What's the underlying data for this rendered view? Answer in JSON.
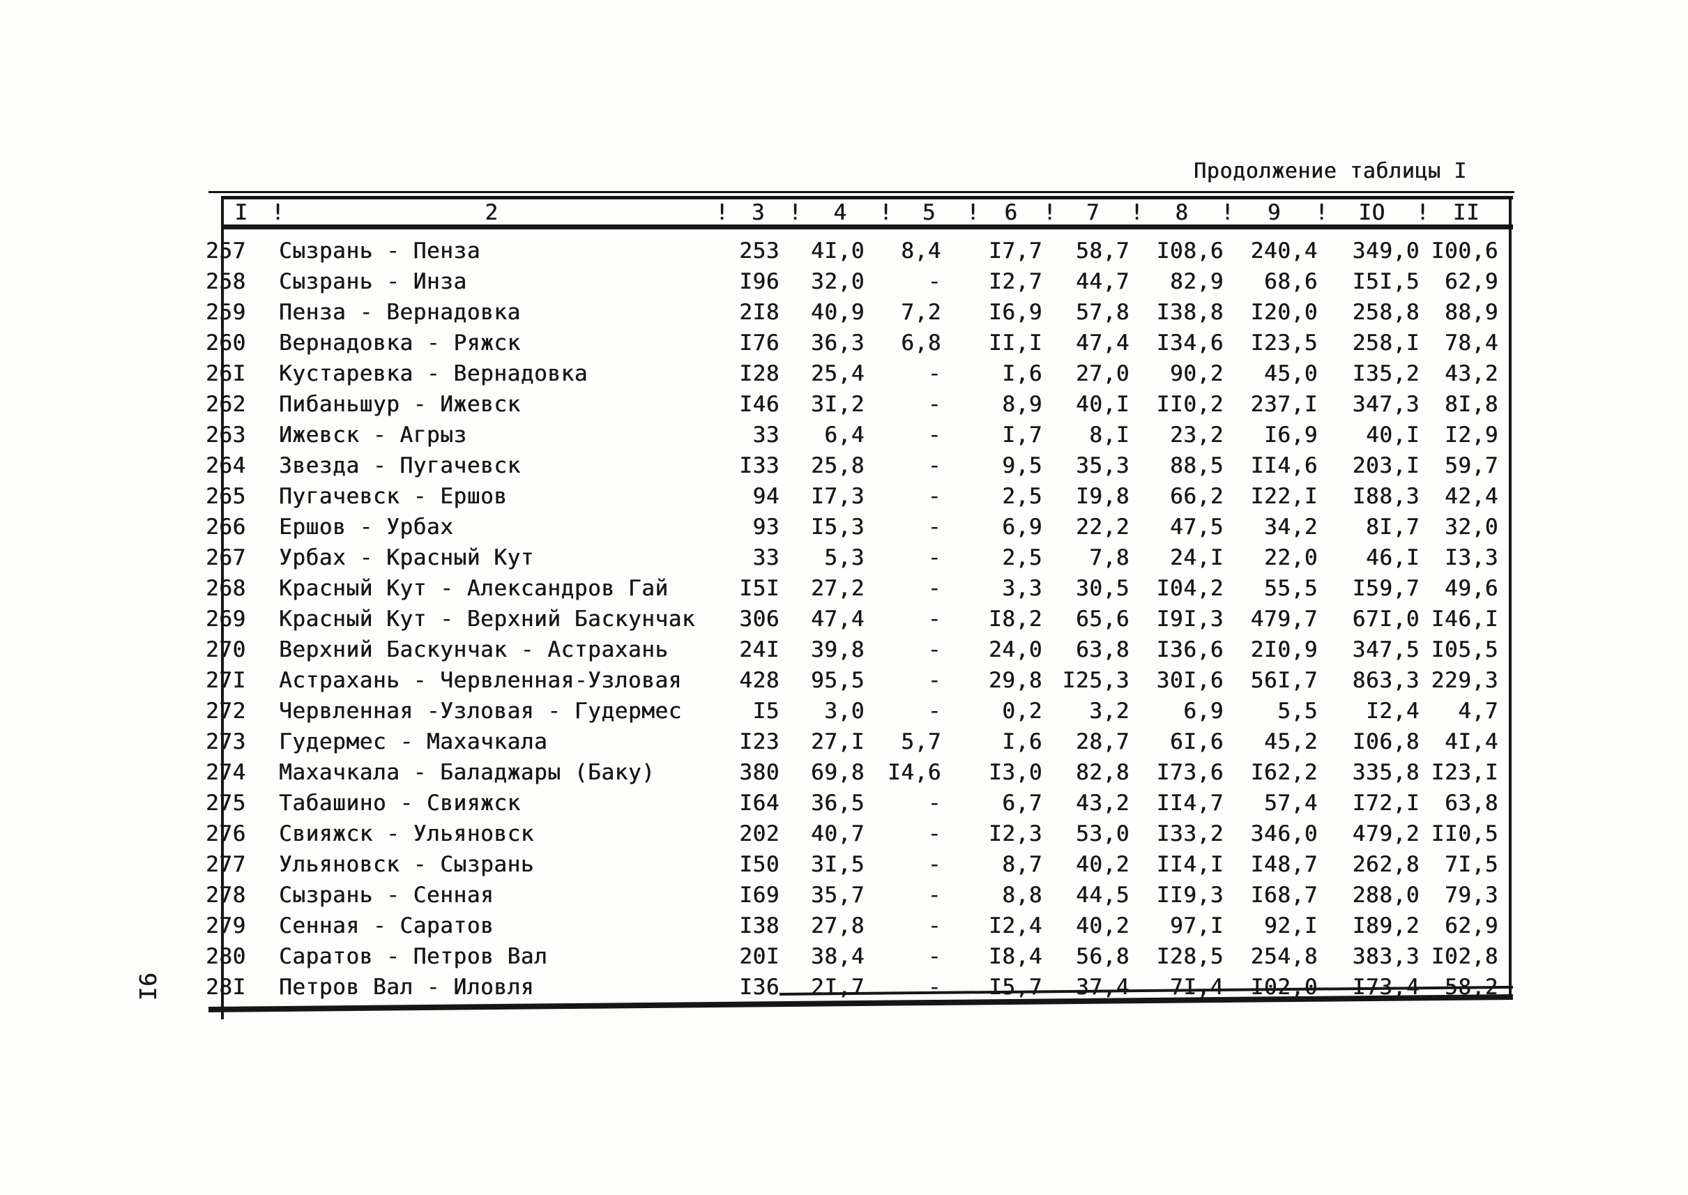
{
  "page": {
    "title": "Продолжение таблицы I",
    "page_number": "I6"
  },
  "table": {
    "separator": "!",
    "columns": [
      "I",
      "2",
      "3",
      "4",
      "5",
      "6",
      "7",
      "8",
      "9",
      "IO",
      "II"
    ],
    "rows": [
      {
        "num": "257",
        "name": "Сызрань - Пенза",
        "values": [
          "253",
          "4I,0",
          "8,4",
          "I7,7",
          "58,7",
          "I08,6",
          "240,4",
          "349,0",
          "I00,6"
        ]
      },
      {
        "num": "258",
        "name": "Сызрань - Инза",
        "values": [
          "I96",
          "32,0",
          "-",
          "I2,7",
          "44,7",
          "82,9",
          "68,6",
          "I5I,5",
          "62,9"
        ]
      },
      {
        "num": "259",
        "name": "Пенза - Вернадовка",
        "values": [
          "2I8",
          "40,9",
          "7,2",
          "I6,9",
          "57,8",
          "I38,8",
          "I20,0",
          "258,8",
          "88,9"
        ]
      },
      {
        "num": "260",
        "name": "Вернадовка - Ряжск",
        "values": [
          "I76",
          "36,3",
          "6,8",
          "II,I",
          "47,4",
          "I34,6",
          "I23,5",
          "258,I",
          "78,4"
        ]
      },
      {
        "num": "26I",
        "name": "Кустаревка - Вернадовка",
        "values": [
          "I28",
          "25,4",
          "-",
          "I,6",
          "27,0",
          "90,2",
          "45,0",
          "I35,2",
          "43,2"
        ]
      },
      {
        "num": "262",
        "name": "Пибаньшур - Ижевск",
        "values": [
          "I46",
          "3I,2",
          "-",
          "8,9",
          "40,I",
          "II0,2",
          "237,I",
          "347,3",
          "8I,8"
        ]
      },
      {
        "num": "263",
        "name": "Ижевск - Агрыз",
        "values": [
          "33",
          "6,4",
          "-",
          "I,7",
          "8,I",
          "23,2",
          "I6,9",
          "40,I",
          "I2,9"
        ]
      },
      {
        "num": "264",
        "name": "Звезда - Пугачевск",
        "values": [
          "I33",
          "25,8",
          "-",
          "9,5",
          "35,3",
          "88,5",
          "II4,6",
          "203,I",
          "59,7"
        ]
      },
      {
        "num": "265",
        "name": "Пугачевск - Ершов",
        "values": [
          "94",
          "I7,3",
          "-",
          "2,5",
          "I9,8",
          "66,2",
          "I22,I",
          "I88,3",
          "42,4"
        ]
      },
      {
        "num": "266",
        "name": "Ершов - Урбах",
        "values": [
          "93",
          "I5,3",
          "-",
          "6,9",
          "22,2",
          "47,5",
          "34,2",
          "8I,7",
          "32,0"
        ]
      },
      {
        "num": "267",
        "name": "Урбах - Красный Кут",
        "values": [
          "33",
          "5,3",
          "-",
          "2,5",
          "7,8",
          "24,I",
          "22,0",
          "46,I",
          "I3,3"
        ]
      },
      {
        "num": "268",
        "name": "Красный Кут - Александров Гай",
        "values": [
          "I5I",
          "27,2",
          "-",
          "3,3",
          "30,5",
          "I04,2",
          "55,5",
          "I59,7",
          "49,6"
        ]
      },
      {
        "num": "269",
        "name": "Красный Кут - Верхний Баскунчак",
        "values": [
          "306",
          "47,4",
          "-",
          "I8,2",
          "65,6",
          "I9I,3",
          "479,7",
          "67I,0",
          "I46,I"
        ]
      },
      {
        "num": "270",
        "name": "Верхний Баскунчак - Астрахань",
        "values": [
          "24I",
          "39,8",
          "-",
          "24,0",
          "63,8",
          "I36,6",
          "2I0,9",
          "347,5",
          "I05,5"
        ]
      },
      {
        "num": "27I",
        "name": "Астрахань - Червленная-Узловая",
        "values": [
          "428",
          "95,5",
          "-",
          "29,8",
          "I25,3",
          "30I,6",
          "56I,7",
          "863,3",
          "229,3"
        ]
      },
      {
        "num": "272",
        "name": "Червленная -Узловая - Гудермес",
        "values": [
          "I5",
          "3,0",
          "-",
          "0,2",
          "3,2",
          "6,9",
          "5,5",
          "I2,4",
          "4,7"
        ]
      },
      {
        "num": "273",
        "name": "Гудермес - Махачкала",
        "values": [
          "I23",
          "27,I",
          "5,7",
          "I,6",
          "28,7",
          "6I,6",
          "45,2",
          "I06,8",
          "4I,4"
        ]
      },
      {
        "num": "274",
        "name": "Махачкала - Баладжары (Баку)",
        "values": [
          "380",
          "69,8",
          "I4,6",
          "I3,0",
          "82,8",
          "I73,6",
          "I62,2",
          "335,8",
          "I23,I"
        ]
      },
      {
        "num": "275",
        "name": "Табашино - Свияжск",
        "values": [
          "I64",
          "36,5",
          "-",
          "6,7",
          "43,2",
          "II4,7",
          "57,4",
          "I72,I",
          "63,8"
        ]
      },
      {
        "num": "276",
        "name": "Свияжск - Ульяновск",
        "values": [
          "202",
          "40,7",
          "-",
          "I2,3",
          "53,0",
          "I33,2",
          "346,0",
          "479,2",
          "II0,5"
        ]
      },
      {
        "num": "277",
        "name": "Ульяновск - Сызрань",
        "values": [
          "I50",
          "3I,5",
          "-",
          "8,7",
          "40,2",
          "II4,I",
          "I48,7",
          "262,8",
          "7I,5"
        ]
      },
      {
        "num": "278",
        "name": "Сызрань - Сенная",
        "values": [
          "I69",
          "35,7",
          "-",
          "8,8",
          "44,5",
          "II9,3",
          "I68,7",
          "288,0",
          "79,3"
        ]
      },
      {
        "num": "279",
        "name": "Сенная - Саратов",
        "values": [
          "I38",
          "27,8",
          "-",
          "I2,4",
          "40,2",
          "97,I",
          "92,I",
          "I89,2",
          "62,9"
        ]
      },
      {
        "num": "280",
        "name": "Саратов - Петров Вал",
        "values": [
          "20I",
          "38,4",
          "-",
          "I8,4",
          "56,8",
          "I28,5",
          "254,8",
          "383,3",
          "I02,8"
        ]
      },
      {
        "num": "28I",
        "name": "Петров Вал - Иловля",
        "values": [
          "I36",
          "2I,7",
          "-",
          "I5,7",
          "37,4",
          "7I,4",
          "I02,0",
          "I73,4",
          "58,2"
        ]
      }
    ]
  }
}
